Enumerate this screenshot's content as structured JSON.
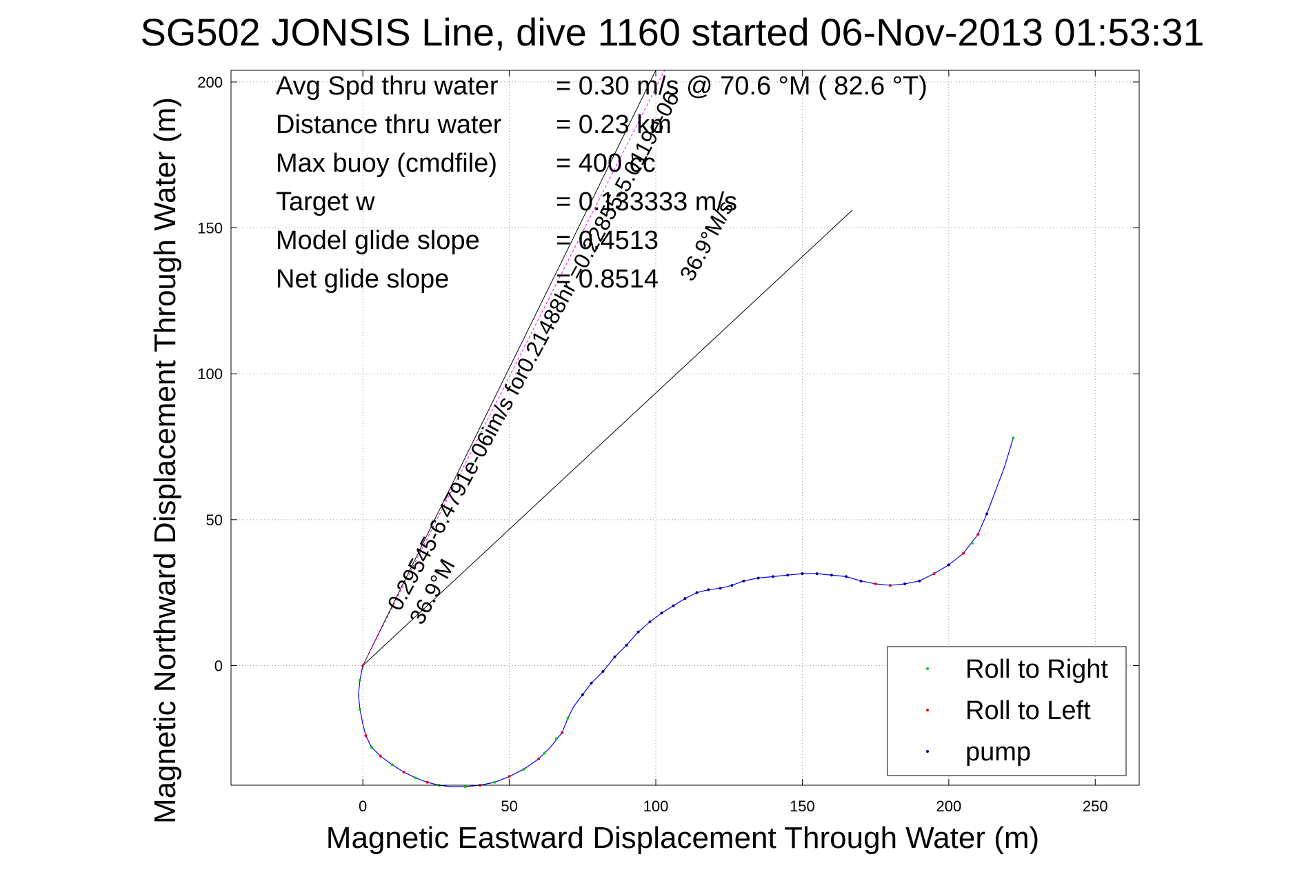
{
  "chart_data": {
    "type": "line",
    "title": "SG502 JONSIS Line, dive 1160 started 06-Nov-2013 01:53:31",
    "xlabel": "Magnetic Eastward Displacement Through Water (m)",
    "ylabel": "Magnetic Northward Displacement Through Water (m)",
    "xlim": [
      -45,
      265
    ],
    "ylim": [
      -41,
      204
    ],
    "xticks": [
      0,
      50,
      100,
      150,
      200,
      250
    ],
    "yticks": [
      0,
      50,
      100,
      150,
      200
    ],
    "grid": true,
    "legend_position": "bottom-right",
    "legend": [
      {
        "name": "Roll to Right",
        "color": "#00cc00"
      },
      {
        "name": "Roll to Left",
        "color": "#ff0000"
      },
      {
        "name": "pump",
        "color": "#000080"
      }
    ],
    "info_lines": [
      {
        "label": "Avg Spd thru water",
        "value": "=  0.30 m/s @  70.6 °M ( 82.6 °T)"
      },
      {
        "label": "Distance thru water",
        "value": "=  0.23 km"
      },
      {
        "label": "Max buoy (cmdfile)",
        "value": "= 400 cc"
      },
      {
        "label": "Target w",
        "value": "= 0.133333 m/s"
      },
      {
        "label": "Model glide slope",
        "value": "= 0.4513"
      },
      {
        "label": "Net glide slope",
        "value": "= 0.8514"
      }
    ],
    "annotations": {
      "current_label_1": "0.29545-6.4791e-06im/s for0.21488hr =0.22855-5.0119e-06",
      "current_label_2": "36.9°M",
      "current_label_3": "36.9°M/s"
    },
    "reference_lines": [
      {
        "from": [
          0,
          0
        ],
        "to": [
          100,
          204
        ]
      },
      {
        "from": [
          0,
          0
        ],
        "to": [
          167,
          156
        ]
      },
      {
        "from": [
          0,
          0
        ],
        "to": [
          103,
          204
        ],
        "color": "#ff00ff",
        "style": "dashed"
      }
    ],
    "series": [
      {
        "name": "track",
        "color": "#0000ff",
        "x": [
          0,
          -1,
          -1.5,
          -1,
          0,
          1,
          3,
          6,
          10,
          14,
          18,
          22,
          26,
          30,
          35,
          40,
          45,
          50,
          55,
          60,
          64,
          68,
          70,
          72,
          75,
          78,
          82,
          86,
          90,
          94,
          98,
          102,
          106,
          110,
          114,
          118,
          122,
          126,
          130,
          135,
          140,
          145,
          150,
          155,
          160,
          165,
          170,
          175,
          180,
          185,
          190,
          195,
          200,
          205,
          210,
          213,
          216,
          219,
          222
        ],
        "y": [
          0,
          -5,
          -10,
          -15,
          -20,
          -24,
          -28,
          -31,
          -34,
          -36.5,
          -38.5,
          -40,
          -41,
          -41.5,
          -41.5,
          -41,
          -40,
          -38,
          -35.5,
          -32,
          -28,
          -23,
          -18,
          -14,
          -10,
          -6,
          -2,
          3,
          7,
          11.5,
          15,
          18,
          20.5,
          23,
          25,
          26,
          26.5,
          27.5,
          29,
          30,
          30.5,
          31,
          31.5,
          31.5,
          31,
          30.5,
          29,
          28,
          27.5,
          28,
          29,
          31.5,
          34.5,
          38.5,
          45,
          52,
          60,
          68,
          78
        ]
      }
    ],
    "markers": {
      "roll_right": [
        [
          -1,
          -5
        ],
        [
          -1,
          -15
        ],
        [
          3,
          -28
        ],
        [
          10,
          -34
        ],
        [
          18,
          -38.5
        ],
        [
          26,
          -41
        ],
        [
          35,
          -41.5
        ],
        [
          45,
          -40
        ],
        [
          55,
          -35.5
        ],
        [
          62,
          -30
        ],
        [
          66,
          -25
        ],
        [
          70,
          -18
        ],
        [
          208,
          42
        ],
        [
          222,
          78
        ]
      ],
      "roll_left": [
        [
          0,
          0
        ],
        [
          1,
          -24
        ],
        [
          6,
          -31
        ],
        [
          14,
          -36.5
        ],
        [
          22,
          -40
        ],
        [
          40,
          -41
        ],
        [
          50,
          -38
        ],
        [
          60,
          -32
        ],
        [
          68,
          -23
        ],
        [
          175,
          28
        ],
        [
          180,
          27.5
        ],
        [
          195,
          31.5
        ],
        [
          200,
          34.5
        ],
        [
          205,
          38.5
        ],
        [
          210,
          45
        ]
      ],
      "pump": [
        [
          75,
          -10
        ],
        [
          78,
          -6
        ],
        [
          82,
          -2
        ],
        [
          86,
          3
        ],
        [
          90,
          7
        ],
        [
          94,
          11.5
        ],
        [
          98,
          15
        ],
        [
          102,
          18
        ],
        [
          106,
          20.5
        ],
        [
          110,
          23
        ],
        [
          114,
          25
        ],
        [
          118,
          26
        ],
        [
          122,
          26.5
        ],
        [
          126,
          27.5
        ],
        [
          130,
          29
        ],
        [
          135,
          30
        ],
        [
          140,
          30.5
        ],
        [
          145,
          31
        ],
        [
          150,
          31.5
        ],
        [
          155,
          31.5
        ],
        [
          160,
          31
        ],
        [
          165,
          30.5
        ],
        [
          170,
          29
        ],
        [
          185,
          28
        ],
        [
          190,
          29
        ],
        [
          200,
          34.5
        ],
        [
          213,
          52
        ]
      ]
    }
  }
}
